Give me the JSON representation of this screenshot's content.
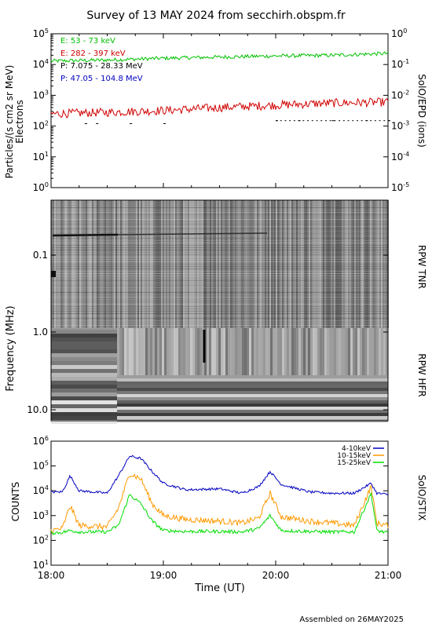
{
  "title": "Survey of 13 MAY 2024 from secchirh.obspm.fr",
  "footer": "Assembled on 26MAY2025",
  "colors": {
    "green": "#00c000",
    "red": "#d00000",
    "black": "#000000",
    "blue": "#0000c0",
    "orange": "#ff9900",
    "stix_green": "#00dd00"
  },
  "chart_data": [
    {
      "type": "line",
      "id": "particles",
      "ylabel": "Particles/(s cm2 sr MeV)",
      "ylabel2": "Electrons",
      "right_label": "SolO/EPD (ions)",
      "yscale": "log",
      "ylim": [
        1,
        100000
      ],
      "yticks": [
        "10^0",
        "10^1",
        "10^2",
        "10^3",
        "10^4",
        "10^5"
      ],
      "y2lim": [
        1e-05,
        1
      ],
      "y2ticks": [
        "10^-5",
        "10^-4",
        "10^-3",
        "10^-2",
        "10^-1",
        "10^0"
      ],
      "x_range_hours": [
        18,
        21
      ],
      "legend": [
        {
          "label": "E: 53 - 73 keV",
          "color": "#00c000"
        },
        {
          "label": "E: 282 - 397 keV",
          "color": "#d00000"
        },
        {
          "label": "P: 7.075 - 28.33 MeV",
          "color": "#000000"
        },
        {
          "label": "P: 47.05 - 104.8 MeV",
          "color": "#0000c0"
        }
      ],
      "series": [
        {
          "name": "E: 53 - 73 keV",
          "x": [
            18.0,
            18.5,
            19.0,
            19.5,
            20.0,
            20.5,
            21.0
          ],
          "y": [
            13000,
            14000,
            16000,
            17500,
            19000,
            20000,
            23000
          ]
        },
        {
          "name": "E: 282 - 397 keV",
          "x": [
            18.0,
            18.5,
            19.0,
            19.5,
            20.0,
            20.5,
            21.0
          ],
          "y": [
            250,
            280,
            320,
            400,
            480,
            560,
            600
          ]
        },
        {
          "name": "P: 7.075 - 28.33 MeV",
          "x": [
            18.3,
            18.4,
            18.7,
            19.0,
            20.0,
            20.2,
            20.5,
            20.8,
            21.0
          ],
          "y": [
            0.0012,
            0.0012,
            0.0012,
            0.0012,
            0.0015,
            0.0015,
            0.0015,
            0.0015,
            0.0015
          ]
        }
      ]
    },
    {
      "type": "heatmap",
      "id": "rpw",
      "ylabel": "Frequency (MHz)",
      "yscale": "log",
      "yticks": [
        "0.1",
        "1.0",
        "10.0"
      ],
      "labels": [
        "RPW TNR",
        "RPW HFR"
      ],
      "x_range_hours": [
        18,
        21
      ]
    },
    {
      "type": "line",
      "id": "stix",
      "ylabel": "COUNTS",
      "right_label": "SolO/STIX",
      "yscale": "log",
      "ylim": [
        10,
        1000000
      ],
      "yticks": [
        "10^1",
        "10^2",
        "10^3",
        "10^4",
        "10^5",
        "10^6"
      ],
      "xlabel": "Time (UT)",
      "xticks": [
        "18:00",
        "19:00",
        "20:00",
        "21:00"
      ],
      "x_range_hours": [
        18,
        21
      ],
      "legend": [
        {
          "label": "4-10keV",
          "color": "#0000c0"
        },
        {
          "label": "10-15keV",
          "color": "#ff9900"
        },
        {
          "label": "15-25keV",
          "color": "#00dd00"
        }
      ],
      "series": [
        {
          "name": "4-10keV",
          "x": [
            18.0,
            18.1,
            18.17,
            18.25,
            18.5,
            18.6,
            18.7,
            18.8,
            18.9,
            19.0,
            19.2,
            19.5,
            19.7,
            19.85,
            19.95,
            20.05,
            20.3,
            20.5,
            20.7,
            20.85,
            20.9,
            21.0
          ],
          "y": [
            9000,
            9000,
            40000,
            10000,
            8000,
            40000,
            250000,
            200000,
            60000,
            20000,
            11000,
            12000,
            8000,
            15000,
            60000,
            18000,
            9000,
            8000,
            8000,
            20000,
            8000,
            7000
          ]
        },
        {
          "name": "10-15keV",
          "x": [
            18.0,
            18.1,
            18.17,
            18.25,
            18.5,
            18.6,
            18.7,
            18.8,
            18.9,
            19.0,
            19.2,
            19.5,
            19.7,
            19.85,
            19.95,
            20.05,
            20.3,
            20.5,
            20.7,
            20.85,
            20.9,
            21.0
          ],
          "y": [
            250,
            300,
            2500,
            400,
            350,
            2000,
            50000,
            30000,
            3000,
            1000,
            700,
            600,
            500,
            800,
            8000,
            900,
            600,
            500,
            400,
            15000,
            500,
            400
          ]
        },
        {
          "name": "15-25keV",
          "x": [
            18.0,
            18.1,
            18.17,
            18.25,
            18.5,
            18.6,
            18.7,
            18.8,
            18.9,
            19.0,
            19.2,
            19.5,
            19.7,
            19.85,
            19.95,
            20.05,
            20.3,
            20.5,
            20.7,
            20.85,
            20.9,
            21.0
          ],
          "y": [
            200,
            210,
            250,
            220,
            220,
            400,
            7000,
            3000,
            600,
            250,
            230,
            230,
            220,
            300,
            1000,
            250,
            230,
            220,
            220,
            8000,
            250,
            200
          ]
        }
      ]
    }
  ]
}
